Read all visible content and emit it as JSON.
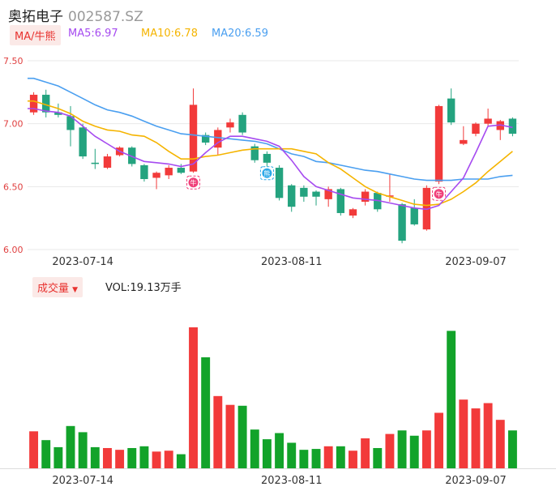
{
  "header": {
    "stock_name": "奥拓电子",
    "stock_code": "002587.SZ"
  },
  "ma_legend": {
    "toggle_label": "MA/牛熊",
    "ma5": "MA5:6.97",
    "ma10": "MA10:6.78",
    "ma20": "MA20:6.59"
  },
  "volume_legend": {
    "toggle_label": "成交量",
    "vol": "VOL:19.13万手"
  },
  "colors": {
    "up": "#f23a3a",
    "down": "#24a37f",
    "vol_down": "#12a32a",
    "ma5": "#a64bf0",
    "ma10": "#f5b400",
    "ma20": "#4a9ff0",
    "grid": "#e8e8e8",
    "axis_text": "#e04040",
    "date_text": "#333333"
  },
  "chart_data": {
    "type": "candlestick",
    "y_ticks": [
      "7.50",
      "7.00",
      "6.50",
      "6.00"
    ],
    "ylim": [
      6.0,
      7.5
    ],
    "x_ticks": [
      {
        "label": "2023-07-14",
        "index": 4
      },
      {
        "label": "2023-08-11",
        "index": 21
      },
      {
        "label": "2023-09-07",
        "index": 36
      }
    ],
    "candles": [
      {
        "o": 7.09,
        "c": 7.23,
        "h": 7.25,
        "l": 7.07
      },
      {
        "o": 7.23,
        "c": 7.09,
        "h": 7.27,
        "l": 7.05
      },
      {
        "o": 7.09,
        "c": 7.07,
        "h": 7.16,
        "l": 7.05
      },
      {
        "o": 7.06,
        "c": 6.95,
        "h": 7.14,
        "l": 6.82
      },
      {
        "o": 6.97,
        "c": 6.74,
        "h": 7.0,
        "l": 6.72
      },
      {
        "o": 6.69,
        "c": 6.68,
        "h": 6.8,
        "l": 6.64
      },
      {
        "o": 6.65,
        "c": 6.74,
        "h": 6.76,
        "l": 6.64
      },
      {
        "o": 6.75,
        "c": 6.81,
        "h": 6.82,
        "l": 6.74
      },
      {
        "o": 6.81,
        "c": 6.68,
        "h": 6.82,
        "l": 6.66
      },
      {
        "o": 6.67,
        "c": 6.56,
        "h": 6.68,
        "l": 6.54
      },
      {
        "o": 6.57,
        "c": 6.61,
        "h": 6.62,
        "l": 6.48
      },
      {
        "o": 6.59,
        "c": 6.65,
        "h": 6.67,
        "l": 6.56
      },
      {
        "o": 6.65,
        "c": 6.61,
        "h": 6.68,
        "l": 6.6
      },
      {
        "o": 6.62,
        "c": 7.15,
        "h": 7.28,
        "l": 6.61
      },
      {
        "o": 6.91,
        "c": 6.85,
        "h": 6.93,
        "l": 6.83
      },
      {
        "o": 6.81,
        "c": 6.95,
        "h": 6.97,
        "l": 6.75
      },
      {
        "o": 6.97,
        "c": 7.01,
        "h": 7.04,
        "l": 6.93
      },
      {
        "o": 7.07,
        "c": 6.93,
        "h": 7.09,
        "l": 6.91
      },
      {
        "o": 6.82,
        "c": 6.71,
        "h": 6.84,
        "l": 6.69
      },
      {
        "o": 6.76,
        "c": 6.69,
        "h": 6.78,
        "l": 6.62
      },
      {
        "o": 6.65,
        "c": 6.41,
        "h": 6.67,
        "l": 6.39
      },
      {
        "o": 6.51,
        "c": 6.34,
        "h": 6.52,
        "l": 6.3
      },
      {
        "o": 6.49,
        "c": 6.42,
        "h": 6.51,
        "l": 6.38
      },
      {
        "o": 6.46,
        "c": 6.42,
        "h": 6.47,
        "l": 6.35
      },
      {
        "o": 6.4,
        "c": 6.48,
        "h": 6.5,
        "l": 6.34
      },
      {
        "o": 6.48,
        "c": 6.29,
        "h": 6.49,
        "l": 6.27
      },
      {
        "o": 6.27,
        "c": 6.32,
        "h": 6.33,
        "l": 6.25
      },
      {
        "o": 6.38,
        "c": 6.46,
        "h": 6.48,
        "l": 6.35
      },
      {
        "o": 6.45,
        "c": 6.32,
        "h": 6.46,
        "l": 6.3
      },
      {
        "o": 6.42,
        "c": 6.43,
        "h": 6.6,
        "l": 6.38
      },
      {
        "o": 6.36,
        "c": 6.07,
        "h": 6.37,
        "l": 6.05
      },
      {
        "o": 6.33,
        "c": 6.2,
        "h": 6.4,
        "l": 6.19
      },
      {
        "o": 6.16,
        "c": 6.49,
        "h": 6.51,
        "l": 6.15
      },
      {
        "o": 6.54,
        "c": 7.14,
        "h": 7.15,
        "l": 6.52
      },
      {
        "o": 7.2,
        "c": 7.01,
        "h": 7.28,
        "l": 6.99
      },
      {
        "o": 6.84,
        "c": 6.87,
        "h": 6.98,
        "l": 6.83
      },
      {
        "o": 6.92,
        "c": 7.0,
        "h": 7.01,
        "l": 6.9
      },
      {
        "o": 7.0,
        "c": 7.04,
        "h": 7.12,
        "l": 6.98
      },
      {
        "o": 6.95,
        "c": 7.02,
        "h": 7.03,
        "l": 6.87
      },
      {
        "o": 7.04,
        "c": 6.92,
        "h": 7.05,
        "l": 6.9
      }
    ],
    "ma5": [
      7.12,
      7.1,
      7.09,
      7.06,
      6.98,
      6.9,
      6.84,
      6.78,
      6.74,
      6.7,
      6.69,
      6.68,
      6.66,
      6.68,
      6.77,
      6.85,
      6.9,
      6.9,
      6.88,
      6.86,
      6.82,
      6.71,
      6.58,
      6.5,
      6.47,
      6.44,
      6.41,
      6.4,
      6.39,
      6.37,
      6.35,
      6.33,
      6.32,
      6.35,
      6.46,
      6.57,
      6.77,
      6.98,
      6.99,
      6.97
    ],
    "ma10": [
      7.18,
      7.15,
      7.12,
      7.08,
      7.02,
      6.98,
      6.95,
      6.94,
      6.91,
      6.9,
      6.85,
      6.78,
      6.72,
      6.72,
      6.74,
      6.75,
      6.77,
      6.79,
      6.8,
      6.8,
      6.8,
      6.8,
      6.78,
      6.76,
      6.69,
      6.64,
      6.57,
      6.5,
      6.45,
      6.42,
      6.39,
      6.36,
      6.35,
      6.36,
      6.4,
      6.46,
      6.53,
      6.62,
      6.7,
      6.78
    ],
    "ma20": [
      7.36,
      7.33,
      7.3,
      7.25,
      7.2,
      7.15,
      7.11,
      7.09,
      7.06,
      7.02,
      6.98,
      6.95,
      6.92,
      6.91,
      6.9,
      6.89,
      6.88,
      6.87,
      6.86,
      6.84,
      6.8,
      6.76,
      6.74,
      6.7,
      6.69,
      6.67,
      6.65,
      6.63,
      6.62,
      6.6,
      6.58,
      6.56,
      6.55,
      6.55,
      6.55,
      6.56,
      6.56,
      6.56,
      6.58,
      6.59
    ],
    "volume_max": 16.0,
    "volumes": [
      4.2,
      3.2,
      2.4,
      4.8,
      4.1,
      2.4,
      2.3,
      2.1,
      2.3,
      2.5,
      1.9,
      2.0,
      1.6,
      16.0,
      12.6,
      8.2,
      7.2,
      7.1,
      4.4,
      3.3,
      4.0,
      2.9,
      2.1,
      2.2,
      2.5,
      2.5,
      2.0,
      3.4,
      2.3,
      3.9,
      4.3,
      3.7,
      4.3,
      6.3,
      15.6,
      7.8,
      6.8,
      7.4,
      5.5,
      4.3
    ],
    "markers": [
      {
        "index": 13,
        "type": "up",
        "glyph": "牛"
      },
      {
        "index": 19,
        "type": "down",
        "glyph": "熊"
      },
      {
        "index": 33,
        "type": "up",
        "glyph": "牛"
      }
    ]
  }
}
